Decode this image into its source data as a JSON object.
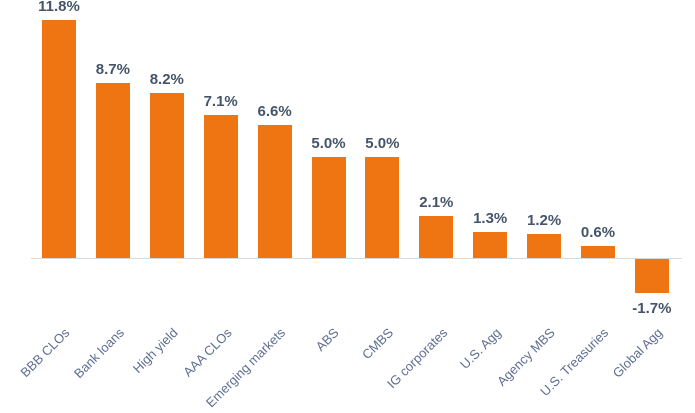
{
  "chart_data": {
    "type": "bar",
    "title": "",
    "xlabel": "",
    "ylabel": "",
    "categories": [
      "BBB CLOs",
      "Bank loans",
      "High yield",
      "AAA CLOs",
      "Emerging markets",
      "ABS",
      "CMBS",
      "IG corporates",
      "U.S. Agg",
      "Agency MBS",
      "U.S. Treasuries",
      "Global Agg"
    ],
    "values": [
      11.8,
      8.7,
      8.2,
      7.1,
      6.6,
      5.0,
      5.0,
      2.1,
      1.3,
      1.2,
      0.6,
      -1.7
    ],
    "value_labels": [
      "11.8%",
      "8.7%",
      "8.2%",
      "7.1%",
      "6.6%",
      "5.0%",
      "5.0%",
      "2.1%",
      "1.3%",
      "1.2%",
      "0.6%",
      "-1.7%"
    ],
    "ylim": [
      -2,
      12.5
    ],
    "baseline": 0,
    "grid": false,
    "legend": false,
    "data_labels": true,
    "category_label_rotation_deg": -45
  },
  "colors": {
    "bar": "#ee7511",
    "value_label": "#44546a",
    "category_label": "#5e6d92",
    "axis_line": "#d9d9d9",
    "background": "#ffffff"
  }
}
